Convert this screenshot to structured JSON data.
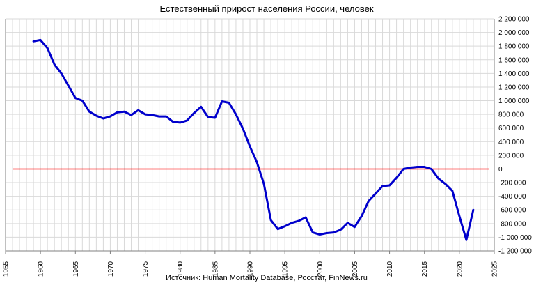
{
  "chart_data": {
    "type": "line",
    "title": "Естественный прирост населения России,  человек",
    "source": "Источник: Human Mortality Database, Росстат, FinNews.ru",
    "xlabel": "",
    "ylabel": "",
    "xlim": [
      1955,
      2025
    ],
    "ylim": [
      -1200000,
      2200000
    ],
    "x_ticks": [
      1955,
      1960,
      1965,
      1970,
      1975,
      1980,
      1985,
      1990,
      1995,
      2000,
      2005,
      2010,
      2015,
      2020,
      2025
    ],
    "y_ticks": [
      {
        "value": 2200000,
        "label": "2 200 000"
      },
      {
        "value": 2000000,
        "label": "2 000 000"
      },
      {
        "value": 1800000,
        "label": "1 800 000"
      },
      {
        "value": 1600000,
        "label": "1 600 000"
      },
      {
        "value": 1400000,
        "label": "1 400 000"
      },
      {
        "value": 1200000,
        "label": "1 200 000"
      },
      {
        "value": 1000000,
        "label": "1 000 000"
      },
      {
        "value": 800000,
        "label": "800 000"
      },
      {
        "value": 600000,
        "label": "600 000"
      },
      {
        "value": 400000,
        "label": "400 000"
      },
      {
        "value": 200000,
        "label": "200 000"
      },
      {
        "value": 0,
        "label": "0"
      },
      {
        "value": -200000,
        "label": "-200 000"
      },
      {
        "value": -400000,
        "label": "-400 000"
      },
      {
        "value": -600000,
        "label": "-600 000"
      },
      {
        "value": -800000,
        "label": "-800 000"
      },
      {
        "value": -1000000,
        "label": "-1 000 000"
      },
      {
        "value": -1200000,
        "label": "-1 200 000"
      }
    ],
    "grid": true,
    "zero_line_color": "#ff0000",
    "series": [
      {
        "color": "#0000cc",
        "points": [
          [
            1959,
            1870000
          ],
          [
            1960,
            1890000
          ],
          [
            1961,
            1770000
          ],
          [
            1962,
            1530000
          ],
          [
            1963,
            1400000
          ],
          [
            1964,
            1220000
          ],
          [
            1965,
            1040000
          ],
          [
            1966,
            1000000
          ],
          [
            1967,
            840000
          ],
          [
            1968,
            780000
          ],
          [
            1969,
            740000
          ],
          [
            1970,
            770000
          ],
          [
            1971,
            830000
          ],
          [
            1972,
            840000
          ],
          [
            1973,
            790000
          ],
          [
            1974,
            860000
          ],
          [
            1975,
            800000
          ],
          [
            1976,
            790000
          ],
          [
            1977,
            770000
          ],
          [
            1978,
            770000
          ],
          [
            1979,
            690000
          ],
          [
            1980,
            680000
          ],
          [
            1981,
            710000
          ],
          [
            1982,
            820000
          ],
          [
            1983,
            910000
          ],
          [
            1984,
            760000
          ],
          [
            1985,
            750000
          ],
          [
            1986,
            990000
          ],
          [
            1987,
            970000
          ],
          [
            1988,
            800000
          ],
          [
            1989,
            590000
          ],
          [
            1990,
            330000
          ],
          [
            1991,
            100000
          ],
          [
            1992,
            -220000
          ],
          [
            1993,
            -750000
          ],
          [
            1994,
            -880000
          ],
          [
            1995,
            -840000
          ],
          [
            1996,
            -790000
          ],
          [
            1997,
            -760000
          ],
          [
            1998,
            -710000
          ],
          [
            1999,
            -930000
          ],
          [
            2000,
            -960000
          ],
          [
            2001,
            -940000
          ],
          [
            2002,
            -930000
          ],
          [
            2003,
            -890000
          ],
          [
            2004,
            -790000
          ],
          [
            2005,
            -850000
          ],
          [
            2006,
            -690000
          ],
          [
            2007,
            -470000
          ],
          [
            2008,
            -360000
          ],
          [
            2009,
            -250000
          ],
          [
            2010,
            -240000
          ],
          [
            2011,
            -130000
          ],
          [
            2012,
            0
          ],
          [
            2013,
            20000
          ],
          [
            2014,
            30000
          ],
          [
            2015,
            30000
          ],
          [
            2016,
            0
          ],
          [
            2017,
            -140000
          ],
          [
            2018,
            -220000
          ],
          [
            2019,
            -320000
          ],
          [
            2020,
            -690000
          ],
          [
            2021,
            -1040000
          ],
          [
            2022,
            -600000
          ]
        ]
      }
    ]
  }
}
